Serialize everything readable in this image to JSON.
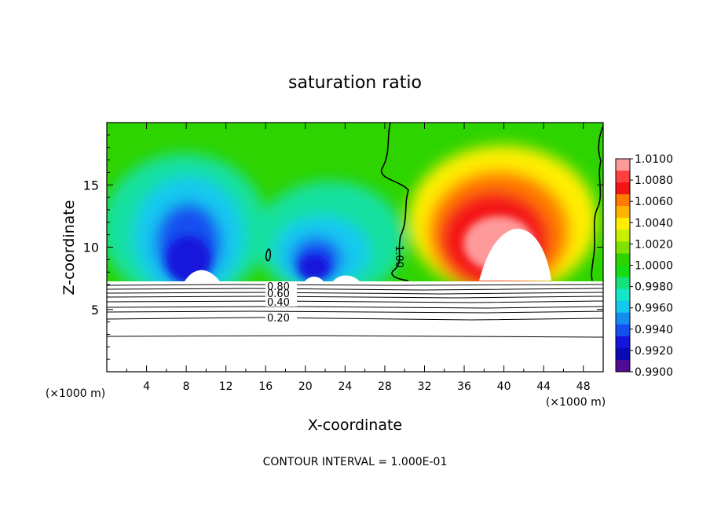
{
  "chart_data": {
    "type": "heatmap",
    "title": "saturation ratio",
    "xlabel": "X-coordinate",
    "ylabel": "Z-coordinate",
    "x_unit_left": "(×1000 m)",
    "x_unit_right": "(×1000 m)",
    "xlim": [
      0,
      50
    ],
    "ylim": [
      0,
      20
    ],
    "x_ticks": [
      4,
      8,
      12,
      16,
      20,
      24,
      28,
      32,
      36,
      40,
      44,
      48
    ],
    "y_ticks": [
      5,
      10,
      15
    ],
    "footer": "CONTOUR INTERVAL = 1.000E-01",
    "colorbar": {
      "labels": [
        "1.0100",
        "1.0080",
        "1.0060",
        "1.0040",
        "1.0020",
        "1.0000",
        "0.9980",
        "0.9960",
        "0.9940",
        "0.9920",
        "0.9900"
      ],
      "colors": [
        "#ff9a9a",
        "#ff4040",
        "#f41414",
        "#ff7a00",
        "#ffb400",
        "#ffee00",
        "#c8ee00",
        "#80e200",
        "#2ed400",
        "#14dc14",
        "#14e07c",
        "#14e6c8",
        "#14c8f0",
        "#148cf0",
        "#1450f0",
        "#1414dc",
        "#0a0ab4",
        "#500a96"
      ]
    },
    "contour_labels": [
      "0.80",
      "0.60",
      "0.40",
      "0.20",
      "1.00"
    ],
    "contour_levels": [
      0.2,
      0.3,
      0.4,
      0.5,
      0.6,
      0.7,
      0.8,
      0.9,
      1.0
    ]
  }
}
